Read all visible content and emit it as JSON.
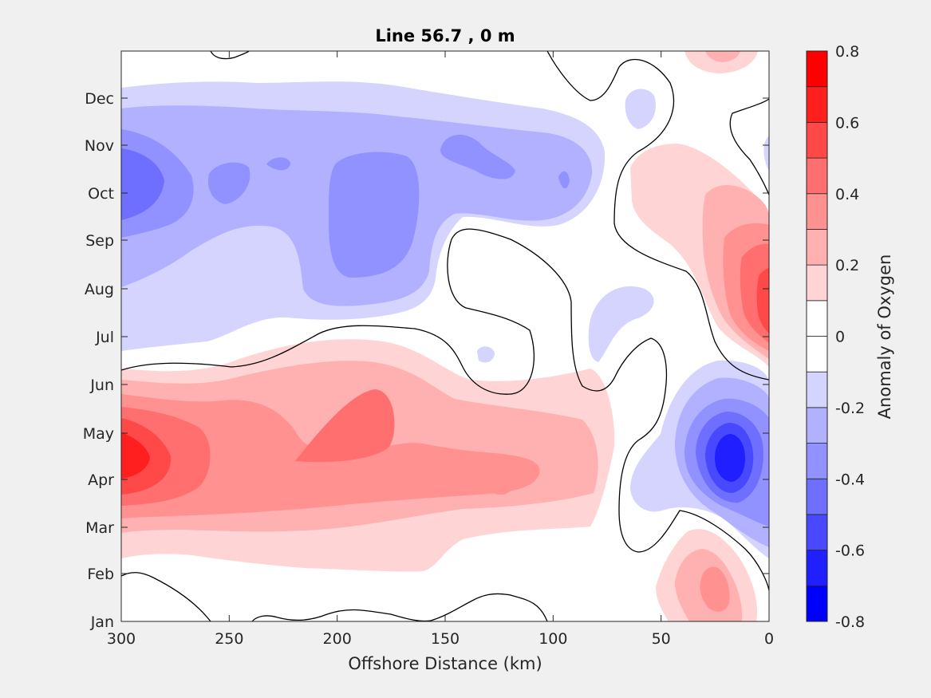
{
  "chart_data": {
    "type": "heatmap",
    "title": "Line 56.7 , 0 m",
    "xlabel": "Offshore Distance (km)",
    "ylabel": "",
    "x_direction": "reversed",
    "xlim": [
      300,
      0
    ],
    "x_ticks": [
      300,
      250,
      200,
      150,
      100,
      50,
      0
    ],
    "y_ticks": [
      "Jan",
      "Feb",
      "Mar",
      "Apr",
      "May",
      "Jun",
      "Jul",
      "Aug",
      "Sep",
      "Oct",
      "Nov",
      "Dec"
    ],
    "colorbar": {
      "label": "Anomaly of Oxygen",
      "range": [
        -0.8,
        0.8
      ],
      "levels": [
        -0.8,
        -0.7,
        -0.6,
        -0.5,
        -0.4,
        -0.3,
        -0.2,
        -0.1,
        0,
        0.1,
        0.2,
        0.3,
        0.4,
        0.5,
        0.6,
        0.7,
        0.8
      ],
      "tick_labels": [
        "0.8",
        "0.6",
        "0.4",
        "0.2",
        "0",
        "-0.2",
        "-0.4",
        "-0.6",
        "-0.8"
      ],
      "colors": [
        "#0000ff",
        "#1f1fff",
        "#4848ff",
        "#6f6fff",
        "#9191ff",
        "#b1b1ff",
        "#d4d4ff",
        "#ffffff",
        "#ffffff",
        "#ffd4d4",
        "#ffb1b1",
        "#ff9191",
        "#ff6f6f",
        "#ff4848",
        "#ff1f1f",
        "#ff0000"
      ]
    },
    "features": [
      {
        "name": "spring positive anomaly",
        "x_range": [
          300,
          70
        ],
        "months": [
          "Mar",
          "Jun"
        ],
        "peak_value": 0.7,
        "peak_at": [
          295,
          "Apr"
        ]
      },
      {
        "name": "fall negative anomaly",
        "x_range": [
          300,
          75
        ],
        "months": [
          "Jul",
          "Dec"
        ],
        "peak_value": -0.5,
        "peak_at": [
          295,
          "Oct"
        ]
      },
      {
        "name": "nearshore summer positive anomaly",
        "x_range": [
          70,
          0
        ],
        "months": [
          "Jul",
          "Nov"
        ],
        "peak_value": 0.5,
        "peak_at": [
          0,
          "Aug"
        ]
      },
      {
        "name": "nearshore spring negative anomaly",
        "x_range": [
          45,
          0
        ],
        "months": [
          "Mar",
          "Jun"
        ],
        "peak_value": -0.7,
        "peak_at": [
          20,
          "Apr"
        ]
      },
      {
        "name": "nearshore winter positive anomaly",
        "x_range": [
          45,
          5
        ],
        "months": [
          "Jan",
          "Mar"
        ],
        "peak_value": 0.3,
        "peak_at": [
          25,
          "Jan"
        ]
      },
      {
        "name": "nearshore December positive anomaly",
        "x_range": [
          55,
          10
        ],
        "months": [
          "Dec"
        ],
        "peak_value": 0.2,
        "peak_at": [
          25,
          "Dec"
        ]
      }
    ]
  }
}
